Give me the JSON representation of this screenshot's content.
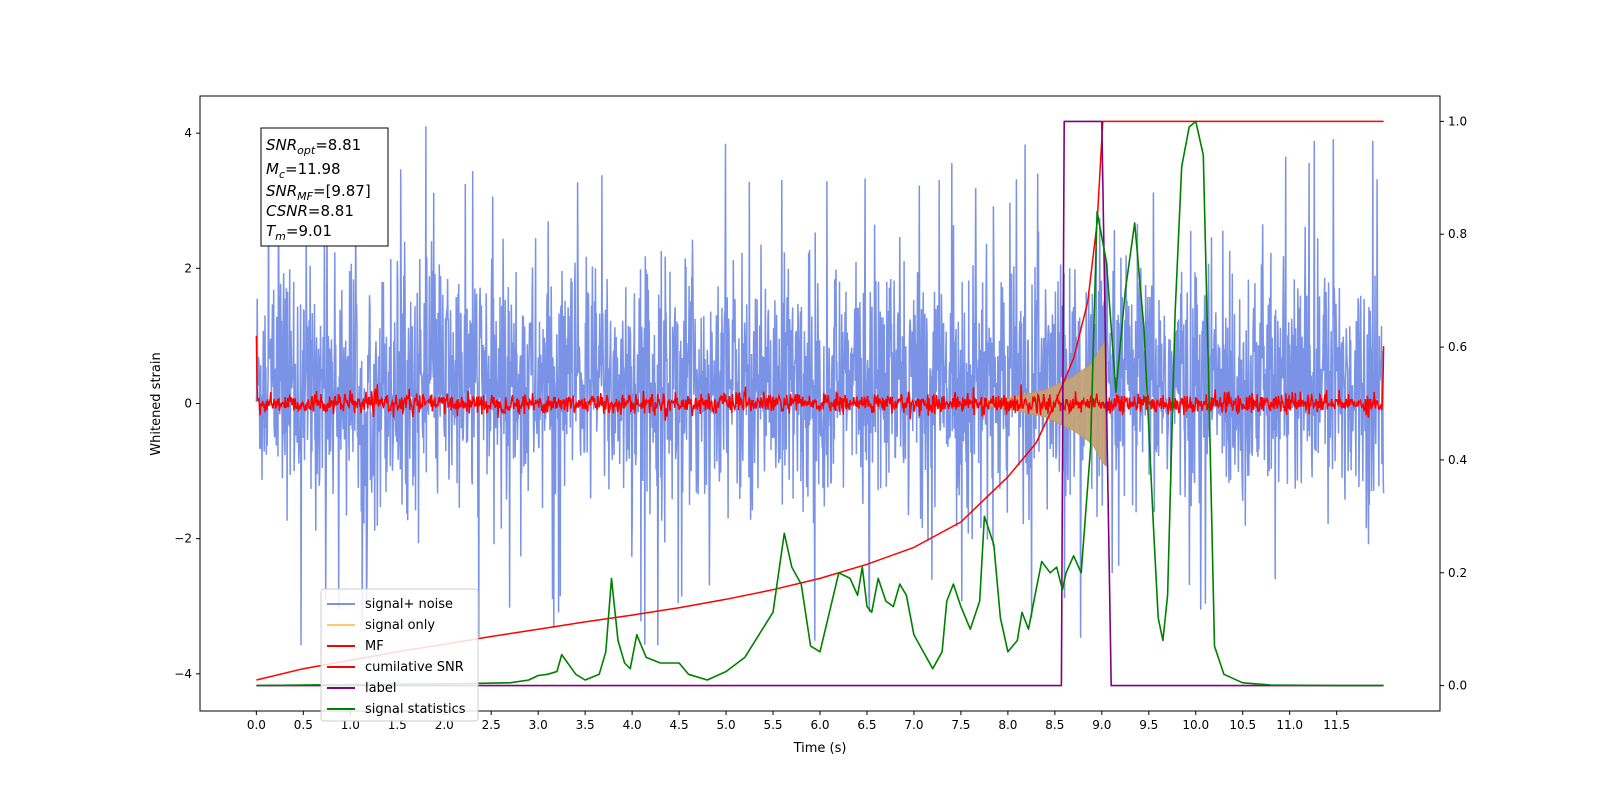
{
  "chart_data": {
    "type": "line",
    "xlabel": "Time (s)",
    "ylabel": "Whitened strain",
    "xlim": [
      -0.6,
      12.6
    ],
    "ylim": [
      -4.55,
      4.55
    ],
    "ylim_right": [
      -0.045,
      1.045
    ],
    "x_ticks": [
      "0.0",
      "0.5",
      "1.0",
      "1.5",
      "2.0",
      "2.5",
      "3.0",
      "3.5",
      "4.0",
      "4.5",
      "5.0",
      "5.5",
      "6.0",
      "6.5",
      "7.0",
      "7.5",
      "8.0",
      "8.5",
      "9.0",
      "9.5",
      "10.0",
      "10.5",
      "11.0",
      "11.5"
    ],
    "y_ticks_left": [
      "−4",
      "−2",
      "0",
      "2",
      "4"
    ],
    "y_ticks_right": [
      "0.0",
      "0.2",
      "0.4",
      "0.6",
      "0.8",
      "1.0"
    ],
    "annotation": {
      "snr_opt": {
        "sym": "SNR",
        "sub": "opt",
        "val": "=8.81"
      },
      "mc": {
        "sym": "M",
        "sub": "c",
        "val": "=11.98"
      },
      "snr_mf": {
        "sym": "SNR",
        "sub": "MF",
        "val": "=[9.87]"
      },
      "csnr": {
        "sym": "CSNR",
        "sub": "",
        "val": "=8.81"
      },
      "tm": {
        "sym": "T",
        "sub": "m",
        "val": "=9.01"
      }
    },
    "legend_position": "lower-left",
    "series": [
      {
        "name": "signal+ noise",
        "color": "#7b93e6",
        "axis": "left",
        "description_free": true,
        "x_range": [
          0,
          12
        ],
        "baseline": 0.3,
        "noise_amplitude_typical": 2.5,
        "max_peaks": [
          4.1,
          -4.1
        ]
      },
      {
        "name": "signal only",
        "color": "#ffc96b",
        "axis": "left",
        "x_range": [
          0,
          9.05
        ],
        "envelope": [
          [
            7.7,
            0.03
          ],
          [
            8.0,
            0.08
          ],
          [
            8.4,
            0.2
          ],
          [
            8.7,
            0.4
          ],
          [
            8.9,
            0.6
          ],
          [
            9.0,
            0.85
          ],
          [
            9.03,
            0.9
          ]
        ]
      },
      {
        "name": "MF",
        "color": "#ff0000",
        "axis": "left",
        "x_range": [
          0,
          12
        ],
        "baseline": 0.0,
        "noise_amplitude_typical": 0.15,
        "edge_values": {
          "start": 1.0,
          "end": 0.85
        }
      },
      {
        "name": "cumilative SNR",
        "color": "#ff0000",
        "axis": "right",
        "points": [
          [
            0.0,
            0.01
          ],
          [
            0.5,
            0.03
          ],
          [
            1.0,
            0.045
          ],
          [
            1.5,
            0.06
          ],
          [
            2.0,
            0.073
          ],
          [
            2.5,
            0.087
          ],
          [
            3.0,
            0.1
          ],
          [
            3.5,
            0.113
          ],
          [
            4.0,
            0.125
          ],
          [
            4.5,
            0.138
          ],
          [
            5.0,
            0.153
          ],
          [
            5.5,
            0.17
          ],
          [
            6.0,
            0.19
          ],
          [
            6.5,
            0.215
          ],
          [
            7.0,
            0.245
          ],
          [
            7.5,
            0.29
          ],
          [
            8.0,
            0.37
          ],
          [
            8.3,
            0.43
          ],
          [
            8.5,
            0.5
          ],
          [
            8.7,
            0.58
          ],
          [
            8.85,
            0.68
          ],
          [
            8.95,
            0.82
          ],
          [
            9.01,
            1.0
          ],
          [
            12.0,
            1.0
          ]
        ]
      },
      {
        "name": "label",
        "color": "#800080",
        "axis": "right",
        "points": [
          [
            0.0,
            0.0
          ],
          [
            8.57,
            0.0
          ],
          [
            8.6,
            1.0
          ],
          [
            9.0,
            1.0
          ],
          [
            9.1,
            0.0
          ],
          [
            12.0,
            0.0
          ]
        ]
      },
      {
        "name": "signal statistics",
        "color": "#008000",
        "axis": "right",
        "points": [
          [
            0.0,
            0.0
          ],
          [
            1.0,
            0.002
          ],
          [
            2.0,
            0.003
          ],
          [
            2.7,
            0.005
          ],
          [
            2.9,
            0.01
          ],
          [
            3.0,
            0.018
          ],
          [
            3.1,
            0.02
          ],
          [
            3.2,
            0.025
          ],
          [
            3.25,
            0.055
          ],
          [
            3.4,
            0.02
          ],
          [
            3.5,
            0.01
          ],
          [
            3.65,
            0.02
          ],
          [
            3.72,
            0.06
          ],
          [
            3.78,
            0.19
          ],
          [
            3.85,
            0.08
          ],
          [
            3.92,
            0.04
          ],
          [
            3.98,
            0.03
          ],
          [
            4.05,
            0.09
          ],
          [
            4.15,
            0.05
          ],
          [
            4.3,
            0.04
          ],
          [
            4.4,
            0.04
          ],
          [
            4.5,
            0.04
          ],
          [
            4.6,
            0.02
          ],
          [
            4.8,
            0.01
          ],
          [
            5.0,
            0.025
          ],
          [
            5.2,
            0.05
          ],
          [
            5.35,
            0.09
          ],
          [
            5.5,
            0.13
          ],
          [
            5.62,
            0.27
          ],
          [
            5.7,
            0.21
          ],
          [
            5.8,
            0.18
          ],
          [
            5.9,
            0.07
          ],
          [
            6.0,
            0.06
          ],
          [
            6.1,
            0.13
          ],
          [
            6.2,
            0.2
          ],
          [
            6.32,
            0.19
          ],
          [
            6.4,
            0.16
          ],
          [
            6.45,
            0.21
          ],
          [
            6.5,
            0.14
          ],
          [
            6.55,
            0.13
          ],
          [
            6.62,
            0.19
          ],
          [
            6.7,
            0.15
          ],
          [
            6.78,
            0.14
          ],
          [
            6.85,
            0.18
          ],
          [
            6.92,
            0.16
          ],
          [
            7.0,
            0.09
          ],
          [
            7.1,
            0.06
          ],
          [
            7.2,
            0.03
          ],
          [
            7.3,
            0.06
          ],
          [
            7.35,
            0.15
          ],
          [
            7.42,
            0.18
          ],
          [
            7.5,
            0.14
          ],
          [
            7.6,
            0.1
          ],
          [
            7.7,
            0.15
          ],
          [
            7.75,
            0.3
          ],
          [
            7.85,
            0.25
          ],
          [
            7.92,
            0.12
          ],
          [
            8.0,
            0.06
          ],
          [
            8.05,
            0.07
          ],
          [
            8.1,
            0.08
          ],
          [
            8.15,
            0.13
          ],
          [
            8.22,
            0.1
          ],
          [
            8.3,
            0.17
          ],
          [
            8.36,
            0.22
          ],
          [
            8.45,
            0.2
          ],
          [
            8.52,
            0.21
          ],
          [
            8.58,
            0.17
          ],
          [
            8.62,
            0.2
          ],
          [
            8.7,
            0.23
          ],
          [
            8.78,
            0.2
          ],
          [
            8.88,
            0.42
          ],
          [
            8.95,
            0.84
          ],
          [
            9.05,
            0.75
          ],
          [
            9.15,
            0.52
          ],
          [
            9.25,
            0.7
          ],
          [
            9.35,
            0.82
          ],
          [
            9.45,
            0.63
          ],
          [
            9.55,
            0.28
          ],
          [
            9.6,
            0.12
          ],
          [
            9.65,
            0.08
          ],
          [
            9.7,
            0.16
          ],
          [
            9.78,
            0.66
          ],
          [
            9.85,
            0.92
          ],
          [
            9.93,
            0.99
          ],
          [
            10.0,
            1.0
          ],
          [
            10.08,
            0.94
          ],
          [
            10.15,
            0.45
          ],
          [
            10.2,
            0.07
          ],
          [
            10.3,
            0.02
          ],
          [
            10.5,
            0.005
          ],
          [
            10.8,
            0.001
          ],
          [
            11.5,
            0.0
          ],
          [
            12.0,
            0.0
          ]
        ]
      }
    ]
  }
}
